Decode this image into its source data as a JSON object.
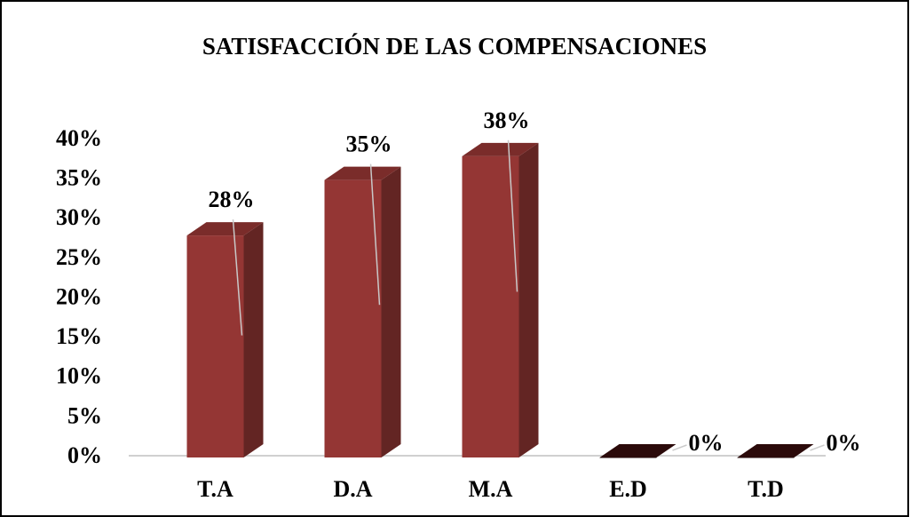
{
  "chart_data": {
    "type": "bar3d",
    "title": "SATISFACCIÓN DE LAS COMPENSACIONES",
    "categories": [
      "T.A",
      "D.A",
      "M.A",
      "E.D",
      "T.D"
    ],
    "values": [
      28,
      35,
      38,
      0,
      0
    ],
    "value_labels": [
      "28%",
      "35%",
      "38%",
      "0%",
      "0%"
    ],
    "color": "#943634",
    "ylim": [
      0,
      40
    ],
    "yticks": [
      {
        "value": 0,
        "label": "0%"
      },
      {
        "value": 5,
        "label": "5%"
      },
      {
        "value": 10,
        "label": "10%"
      },
      {
        "value": 15,
        "label": "15%"
      },
      {
        "value": 20,
        "label": "20%"
      },
      {
        "value": 25,
        "label": "25%"
      },
      {
        "value": 30,
        "label": "30%"
      },
      {
        "value": 35,
        "label": "35%"
      },
      {
        "value": 40,
        "label": "40%"
      }
    ],
    "grid": false
  }
}
